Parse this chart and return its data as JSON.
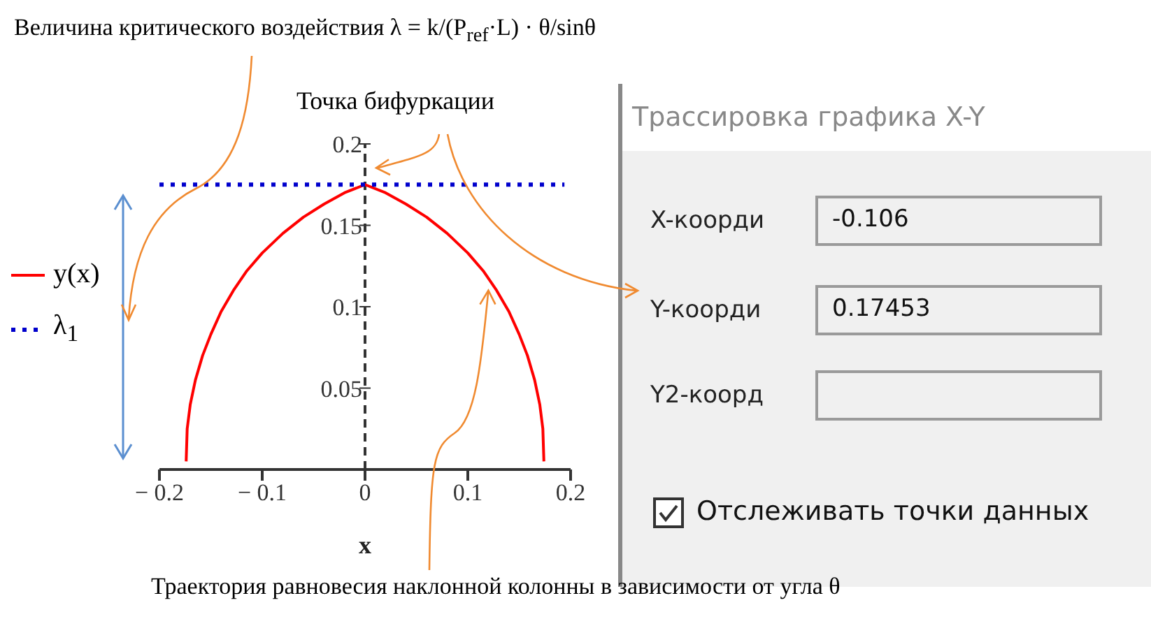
{
  "chart_data": {
    "type": "line",
    "title": "Величина критического воздействия λ = k/(P$_{ref}$·L) · θ/sinθ",
    "xlabel": "x",
    "xlim": [
      -0.2,
      0.2
    ],
    "ylim": [
      0,
      0.2
    ],
    "xticks": [
      {
        "value": -0.2,
        "label": "− 0.2"
      },
      {
        "value": -0.1,
        "label": "− 0.1"
      },
      0,
      0.1,
      0.2
    ],
    "yticks": [
      0.05,
      0.1,
      0.15,
      0.2
    ],
    "series": [
      {
        "name": "y(x)",
        "color": "#ff0000",
        "line_style": "solid",
        "x": [
          -0.174,
          -0.173,
          -0.17,
          -0.165,
          -0.158,
          -0.15,
          -0.14,
          -0.128,
          -0.115,
          -0.1,
          -0.08,
          -0.06,
          -0.04,
          -0.02,
          0,
          0.02,
          0.04,
          0.06,
          0.08,
          0.1,
          0.115,
          0.128,
          0.14,
          0.15,
          0.158,
          0.165,
          0.17,
          0.173,
          0.174
        ],
        "values": [
          0.005,
          0.025,
          0.04,
          0.055,
          0.07,
          0.083,
          0.097,
          0.11,
          0.122,
          0.133,
          0.145,
          0.155,
          0.163,
          0.17,
          0.175,
          0.17,
          0.163,
          0.155,
          0.145,
          0.133,
          0.122,
          0.11,
          0.097,
          0.083,
          0.07,
          0.055,
          0.04,
          0.025,
          0.005
        ]
      },
      {
        "name": "λ$_{1}$",
        "color": "#0000cc",
        "line_style": "dotted",
        "x": [
          -0.2,
          0.194
        ],
        "values": [
          0.175,
          0.175
        ]
      }
    ],
    "ref_lines": [
      {
        "axis": "x",
        "value": 0,
        "color": "#333333",
        "line_style": "dashed"
      }
    ],
    "legend": "left",
    "marker": "none",
    "annotations": [
      {
        "text": "Точка бифуркации",
        "x": 0,
        "y": 0.175
      },
      {
        "text": "Траектория равновесия наклонной колонны в зависимости от угла θ",
        "x": 0.12,
        "y": 0.11
      },
      "Трассировка графика X-Y",
      "X-коорди",
      "-0.106",
      "Y-коорди",
      "0.17453",
      "Y2-коорд",
      "Отслеживать точки данных"
    ]
  }
}
